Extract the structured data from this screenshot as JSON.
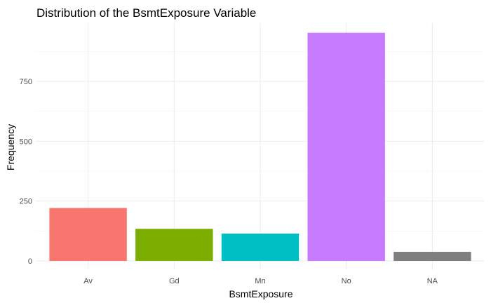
{
  "chart_data": {
    "type": "bar",
    "title": "Distribution of the BsmtExposure Variable",
    "xlabel": "BsmtExposure",
    "ylabel": "Frequency",
    "categories": [
      "Av",
      "Gd",
      "Mn",
      "No",
      "NA"
    ],
    "values": [
      221,
      134,
      114,
      953,
      38
    ],
    "colors": [
      "#F8766D",
      "#7CAE00",
      "#00BFC4",
      "#C77CFF",
      "#7F7F7F"
    ],
    "ylim": [
      0,
      1000
    ],
    "yticks": [
      0,
      250,
      500,
      750
    ],
    "ytick_labels": [
      "0",
      "250",
      "500",
      "750"
    ],
    "grid": true,
    "legend": "none"
  }
}
